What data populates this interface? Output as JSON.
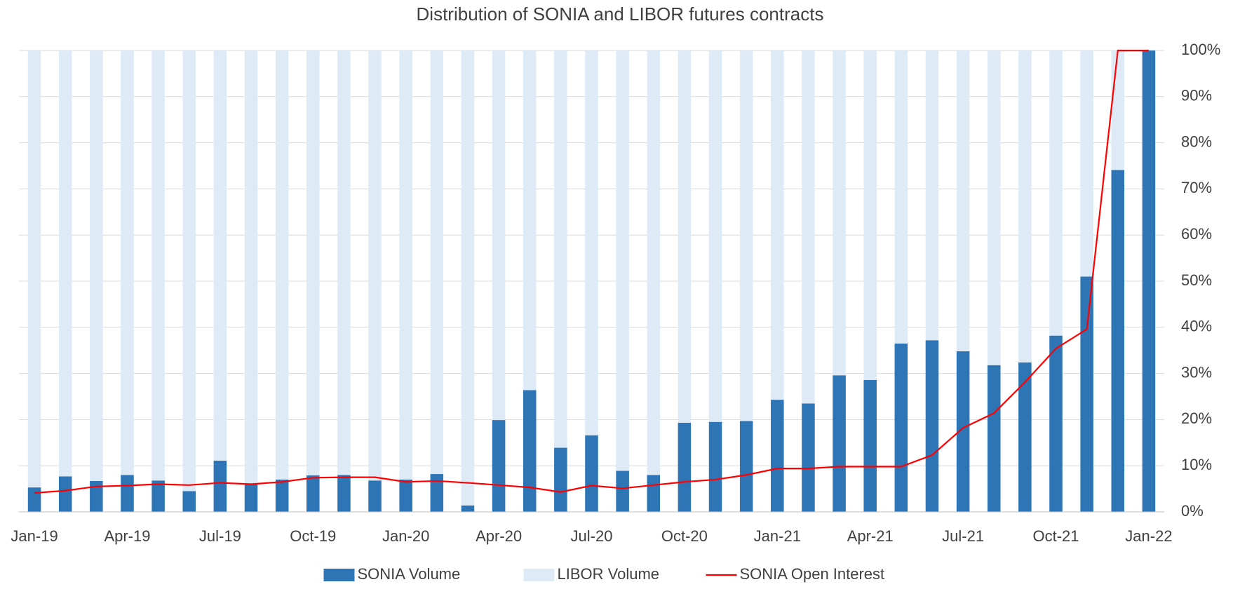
{
  "chart_data": {
    "type": "bar",
    "stacked": true,
    "title": "Distribution of SONIA and LIBOR futures contracts",
    "categories": [
      "Jan-19",
      null,
      null,
      "Apr-19",
      null,
      null,
      "Jul-19",
      null,
      null,
      "Oct-19",
      null,
      null,
      "Jan-20",
      null,
      null,
      "Apr-20",
      null,
      null,
      "Jul-20",
      null,
      null,
      "Oct-20",
      null,
      null,
      "Jan-21",
      null,
      null,
      "Apr-21",
      null,
      null,
      "Jul-21",
      null,
      null,
      "Oct-21",
      null,
      null,
      "Jan-22"
    ],
    "series": [
      {
        "name": "SONIA Volume",
        "type": "bar",
        "color": "#2e75b6",
        "values": [
          5.3,
          7.7,
          6.7,
          8.0,
          6.8,
          4.5,
          11.1,
          6.0,
          7.0,
          7.9,
          8.0,
          6.8,
          7.0,
          8.2,
          1.4,
          19.9,
          26.4,
          13.9,
          16.6,
          8.9,
          8.0,
          19.3,
          19.5,
          19.7,
          24.3,
          23.5,
          29.6,
          28.6,
          36.5,
          37.2,
          34.8,
          31.8,
          32.4,
          38.2,
          51.0,
          74.1,
          100
        ]
      },
      {
        "name": "LIBOR Volume",
        "type": "bar",
        "color": "#deebf7",
        "values": [
          94.7,
          92.3,
          93.3,
          92.0,
          93.2,
          95.5,
          88.9,
          94.0,
          93.0,
          92.1,
          92.0,
          93.2,
          93.0,
          91.8,
          98.6,
          80.1,
          73.6,
          86.1,
          83.4,
          91.1,
          92.0,
          80.7,
          80.5,
          80.3,
          75.7,
          76.5,
          70.4,
          71.4,
          63.5,
          62.8,
          65.2,
          68.2,
          67.6,
          61.8,
          49.0,
          25.9,
          0
        ]
      },
      {
        "name": "SONIA Open Interest",
        "type": "line",
        "color": "#ff0000",
        "values": [
          4.1,
          4.6,
          5.5,
          5.7,
          6.0,
          5.8,
          6.3,
          6.0,
          6.5,
          7.4,
          7.5,
          7.5,
          6.5,
          6.7,
          6.3,
          5.8,
          5.3,
          4.3,
          5.7,
          5.1,
          5.8,
          6.5,
          7.0,
          8.0,
          9.4,
          9.4,
          9.8,
          9.8,
          9.8,
          12.3,
          18.2,
          21.4,
          28.1,
          35.4,
          39.6,
          100,
          100
        ]
      }
    ],
    "ylim": [
      0,
      100
    ],
    "yticks": [
      {
        "value": 0,
        "label": "0%"
      },
      {
        "value": 10,
        "label": "10%"
      },
      {
        "value": 20,
        "label": "20%"
      },
      {
        "value": 30,
        "label": "30%"
      },
      {
        "value": 40,
        "label": "40%"
      },
      {
        "value": 50,
        "label": "50%"
      },
      {
        "value": 60,
        "label": "60%"
      },
      {
        "value": 70,
        "label": "70%"
      },
      {
        "value": 80,
        "label": "80%"
      },
      {
        "value": 90,
        "label": "90%"
      },
      {
        "value": 100,
        "label": "100%"
      }
    ],
    "grid": true,
    "legend": "bottom"
  }
}
